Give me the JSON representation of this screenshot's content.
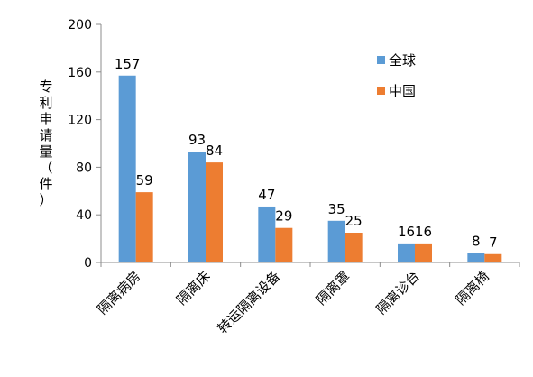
{
  "chart_data": {
    "type": "bar",
    "title": "",
    "xlabel": "",
    "ylabel": "专利申请量（件）",
    "categories": [
      "隔离病房",
      "隔离床",
      "转运隔离设备",
      "隔离罩",
      "隔离诊台",
      "隔离椅"
    ],
    "series": [
      {
        "name": "全球",
        "color": "#5B9BD5",
        "values": [
          157,
          93,
          47,
          35,
          16,
          8
        ]
      },
      {
        "name": "中国",
        "color": "#ED7D31",
        "values": [
          59,
          84,
          29,
          25,
          16,
          7
        ]
      }
    ],
    "ylim": [
      0,
      200
    ],
    "yticks": [
      0,
      40,
      80,
      120,
      160,
      200
    ],
    "legend_position": "top-right",
    "grid": false,
    "data_labels": true
  }
}
